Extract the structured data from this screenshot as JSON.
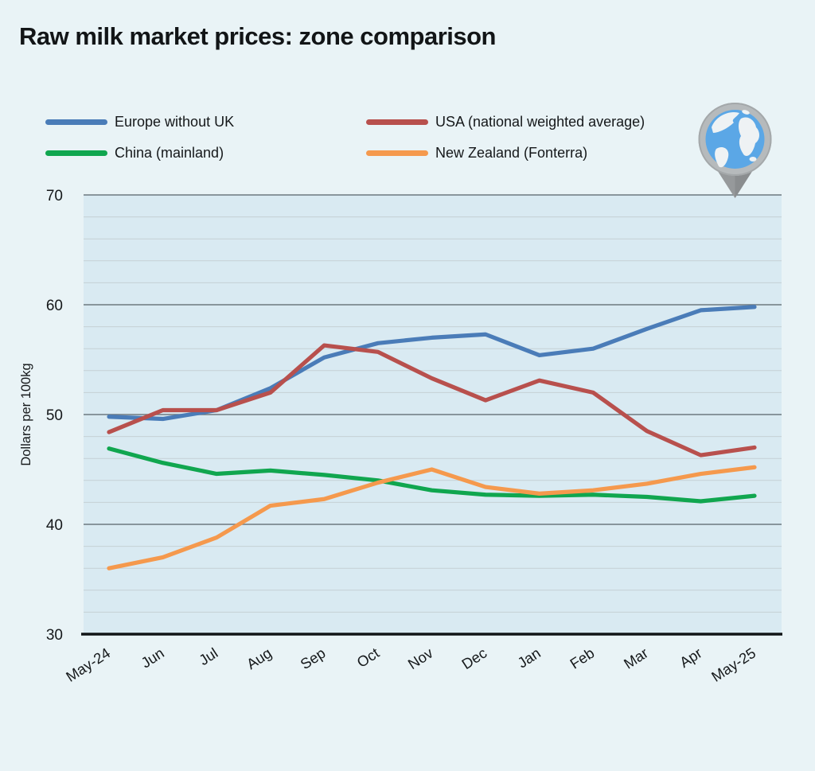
{
  "page": {
    "title": "Raw milk market prices: zone comparison"
  },
  "icons": {
    "globe_pin": "globe-map-pin-icon"
  },
  "colors": {
    "page_background": "#e9f3f6",
    "plot_background": "#d9eaf2",
    "grid_minor": "#c6d0d5",
    "grid_major": "#6e797f",
    "axis_line": "#111416",
    "text": "#15181a"
  },
  "chart_data": {
    "type": "line",
    "title": "Raw milk market prices: zone comparison",
    "ylabel": "Dollars per 100kg",
    "xlabel": "",
    "ylim": [
      30,
      70
    ],
    "yticks": [
      70,
      60,
      50,
      40,
      30
    ],
    "minor_grid_step": 2,
    "grid": "horizontal",
    "legend_position": "top",
    "categories": [
      "May-24",
      "Jun",
      "Jul",
      "Aug",
      "Sep",
      "Oct",
      "Nov",
      "Dec",
      "Jan",
      "Feb",
      "Mar",
      "Apr",
      "May-25"
    ],
    "series": [
      {
        "name": "Europe without UK",
        "color": "#4a7cb8",
        "values": [
          49.8,
          49.6,
          50.4,
          52.4,
          55.2,
          56.5,
          57.0,
          57.3,
          55.4,
          56.0,
          57.8,
          59.5,
          59.8
        ]
      },
      {
        "name": "USA (national weighted average)",
        "color": "#b8504d",
        "values": [
          48.4,
          50.4,
          50.4,
          52.0,
          56.3,
          55.7,
          53.3,
          51.3,
          53.1,
          52.0,
          48.5,
          46.3,
          47.0
        ]
      },
      {
        "name": "China (mainland)",
        "color": "#10a64f",
        "values": [
          46.9,
          45.6,
          44.6,
          44.9,
          44.5,
          44.0,
          43.1,
          42.7,
          42.6,
          42.7,
          42.5,
          42.1,
          42.6
        ]
      },
      {
        "name": "New Zealand (Fonterra)",
        "color": "#f5994d",
        "values": [
          36.0,
          37.0,
          38.8,
          41.7,
          42.3,
          43.8,
          45.0,
          43.4,
          42.8,
          43.1,
          43.7,
          44.6,
          45.2
        ]
      }
    ]
  }
}
